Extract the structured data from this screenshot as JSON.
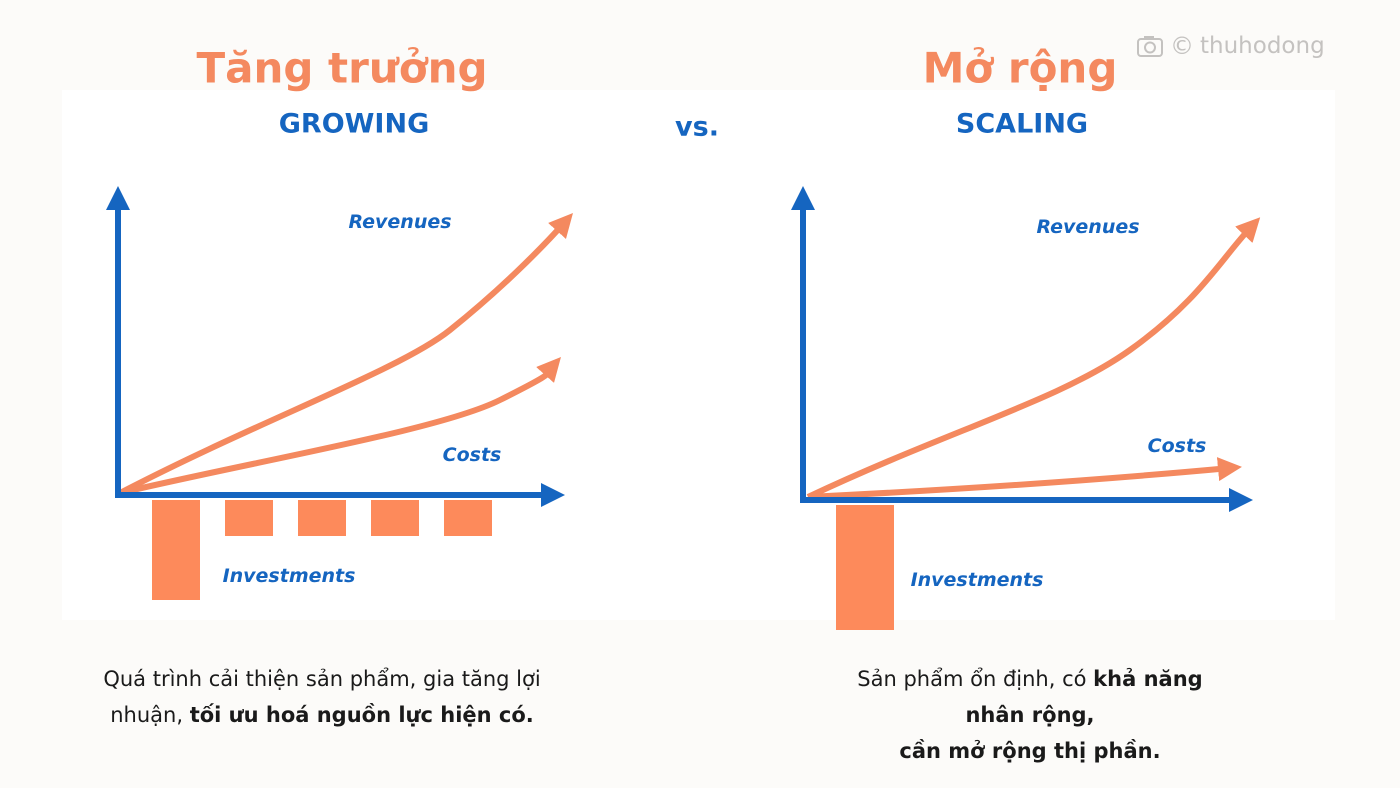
{
  "watermark": {
    "text": "thuhodong",
    "icons": [
      "camera-icon",
      "copyright-icon"
    ]
  },
  "colors": {
    "orange": "#f4895f",
    "blue": "#1565c0",
    "text": "#1a1a1a"
  },
  "left": {
    "title_vi": "Tăng trưởng",
    "title_en": "GROWING",
    "labels": {
      "revenues": "Revenues",
      "costs": "Costs",
      "investments": "Investments"
    },
    "caption_line1": "Quá trình cải thiện sản phẩm, gia tăng lợi",
    "caption_line2_normal": "nhuận, ",
    "caption_line2_bold": "tối ưu hoá nguồn lực hiện có."
  },
  "vs": "vs.",
  "right": {
    "title_vi": "Mở rộng",
    "title_en": "SCALING",
    "labels": {
      "revenues": "Revenues",
      "costs": "Costs",
      "investments": "Investments"
    },
    "caption_line1_normal": "Sản phẩm ổn định, có ",
    "caption_line1_bold": "khả năng nhân rộng,",
    "caption_line2_bold": "cần mở rộng thị phần."
  }
}
